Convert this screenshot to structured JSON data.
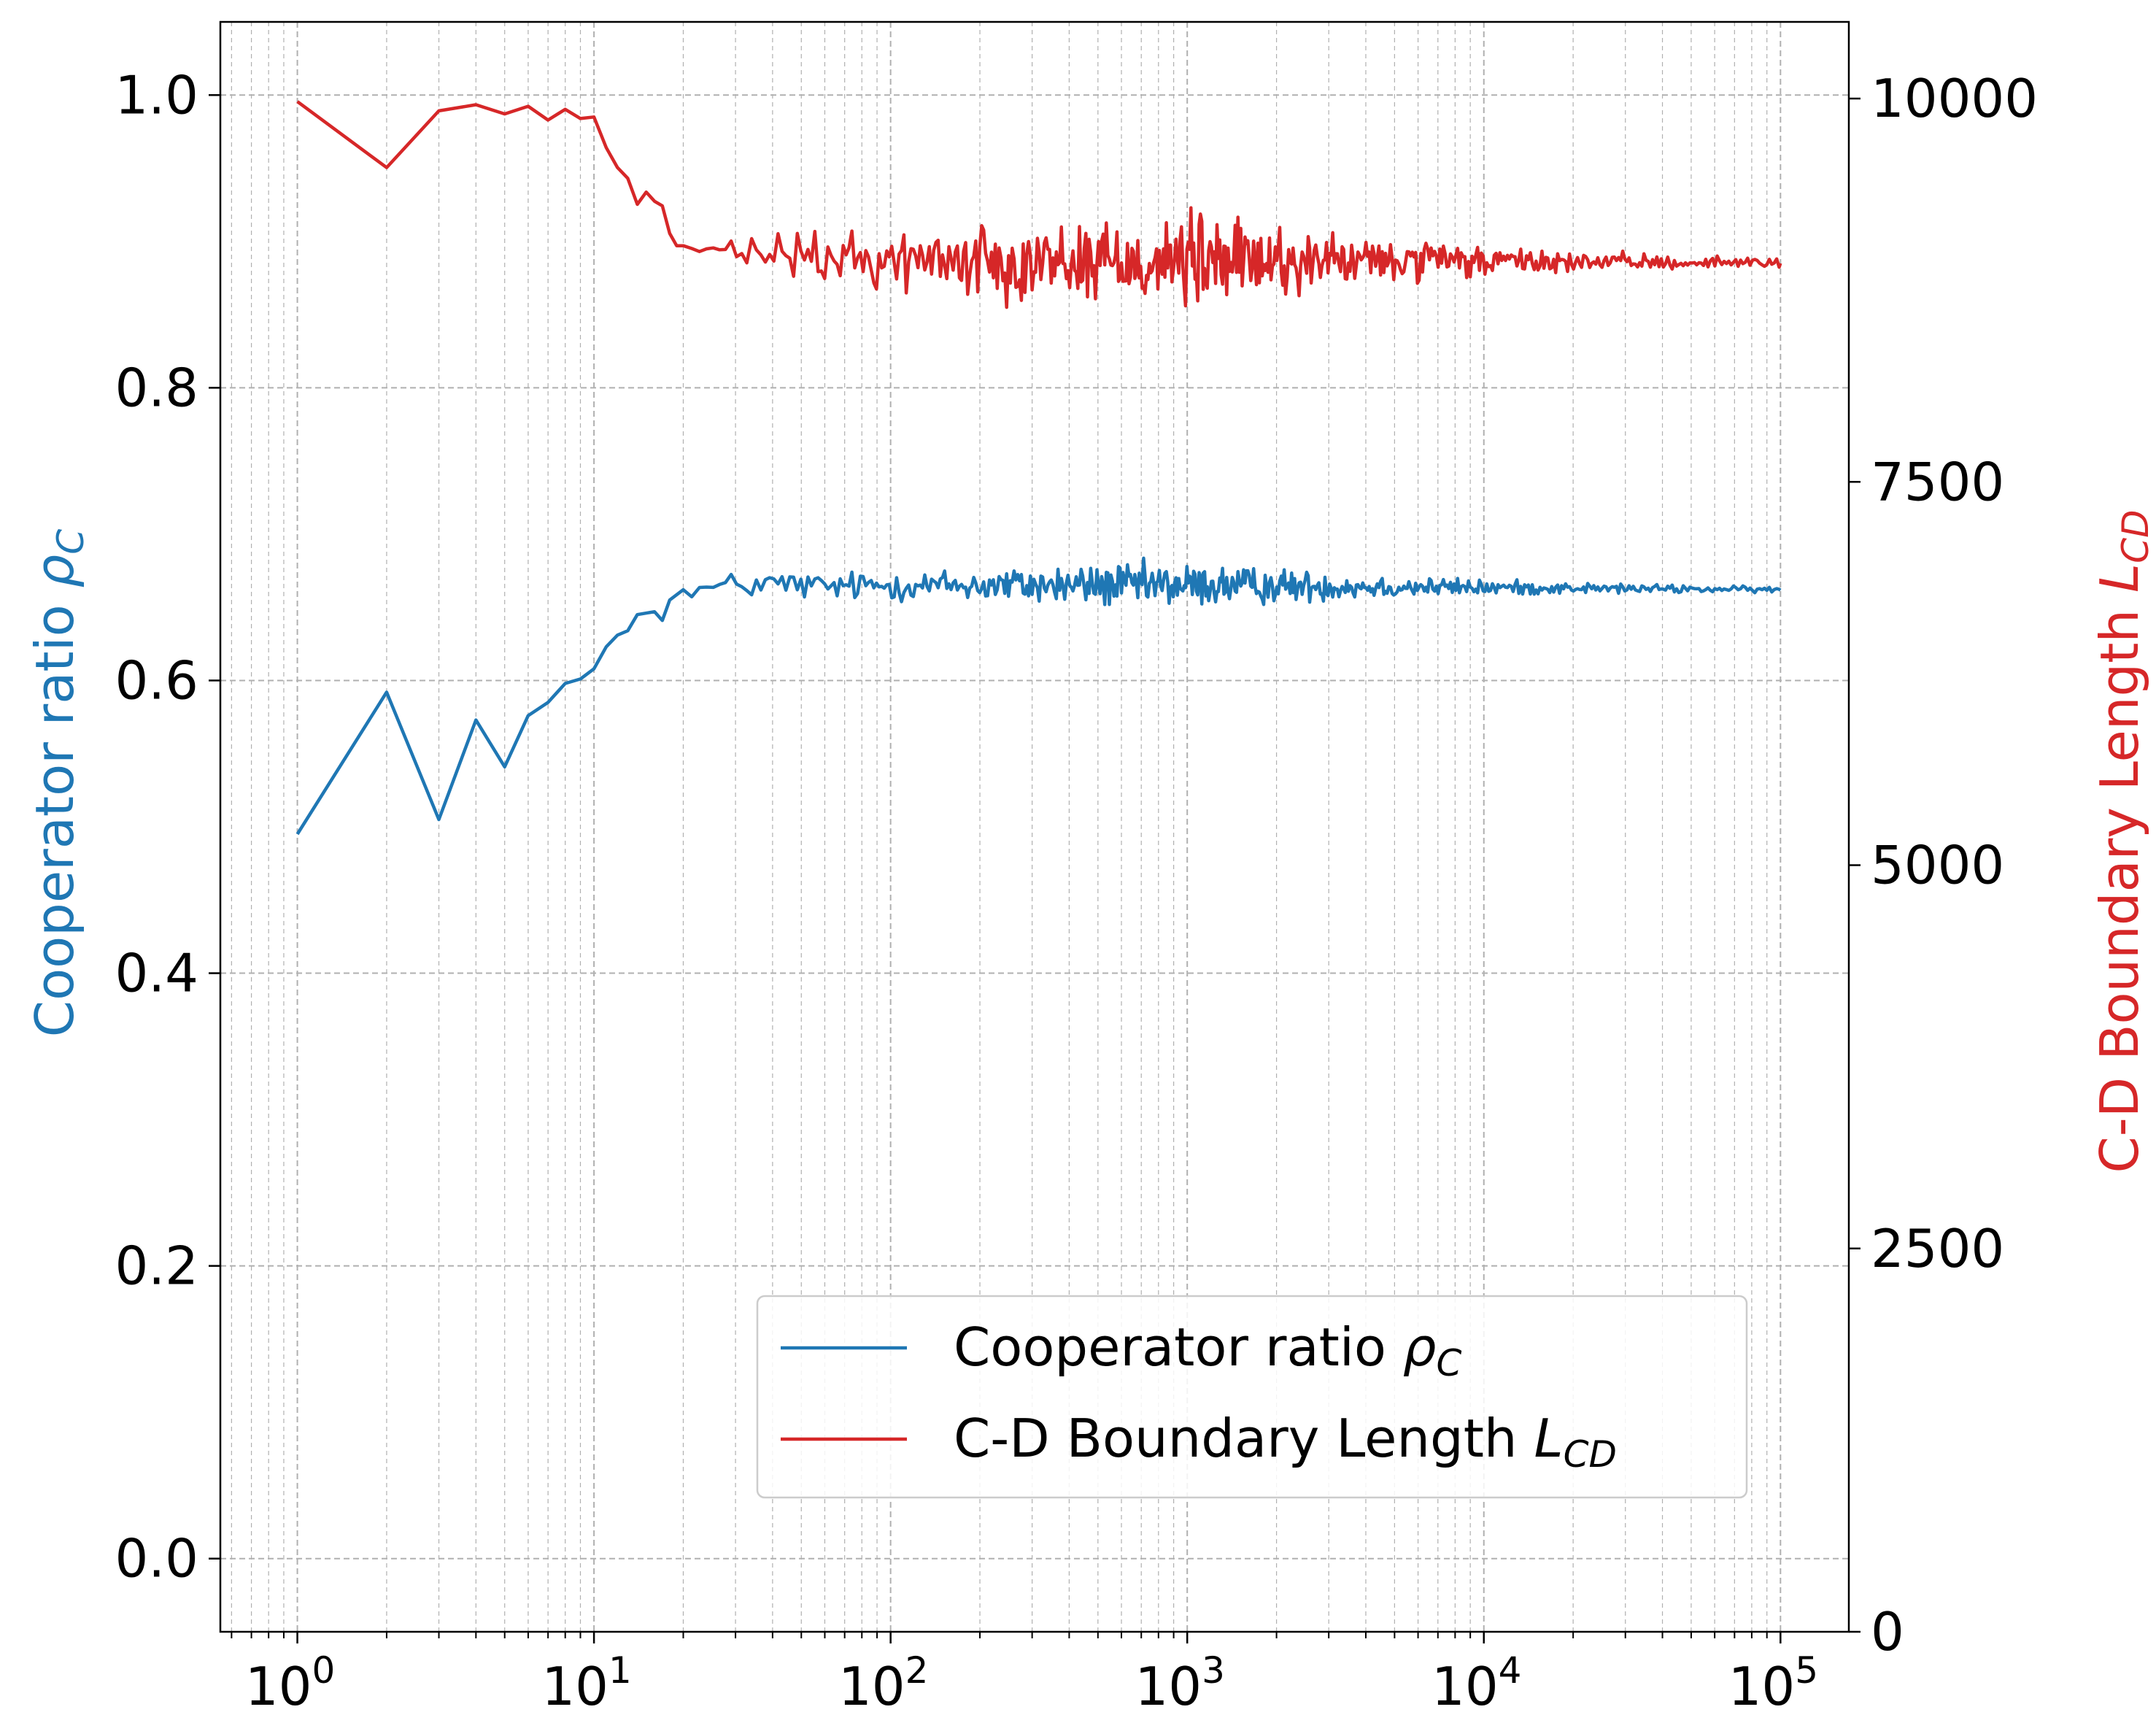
{
  "chart_data": {
    "type": "line",
    "title": "",
    "xlabel": "",
    "xscale": "log",
    "xlim": [
      0.55,
      170000
    ],
    "x_ticks": [
      {
        "value": 1,
        "base": "10",
        "exp": "0"
      },
      {
        "value": 10,
        "base": "10",
        "exp": "1"
      },
      {
        "value": 100,
        "base": "10",
        "exp": "2"
      },
      {
        "value": 1000,
        "base": "10",
        "exp": "3"
      },
      {
        "value": 10000,
        "base": "10",
        "exp": "4"
      },
      {
        "value": 100000,
        "base": "10",
        "exp": "5"
      }
    ],
    "grid": true,
    "left_axis": {
      "label_main": "Cooperator ratio ",
      "label_symbol": "ρ",
      "label_sub": "C",
      "color": "#1f77b4",
      "ylim": [
        -0.05,
        1.05
      ],
      "ticks": [
        "0.0",
        "0.2",
        "0.4",
        "0.6",
        "0.8",
        "1.0"
      ]
    },
    "right_axis": {
      "label_main": "C-D Boundary Length ",
      "label_symbol": "L",
      "label_sub": "CD",
      "color": "#d62728",
      "ylim": [
        0,
        10500
      ],
      "ticks": [
        "0",
        "2500",
        "5000",
        "7500",
        "10000"
      ]
    },
    "legend": {
      "position": "lower-right",
      "entries": [
        {
          "main": "Cooperator ratio ",
          "symbol": "ρ",
          "sub": "C",
          "color": "#1f77b4"
        },
        {
          "main": "C-D Boundary Length ",
          "symbol": "L",
          "sub": "CD",
          "color": "#d62728"
        }
      ]
    },
    "series": [
      {
        "axis": "left",
        "color": "#1f77b4",
        "anchors": [
          [
            1,
            0.495
          ],
          [
            2,
            0.592
          ],
          [
            3,
            0.505
          ],
          [
            4,
            0.573
          ],
          [
            5,
            0.541
          ],
          [
            6,
            0.576
          ],
          [
            7,
            0.585
          ],
          [
            8,
            0.598
          ],
          [
            9,
            0.601
          ],
          [
            10,
            0.608
          ],
          [
            11,
            0.623
          ],
          [
            12,
            0.631
          ],
          [
            13,
            0.634
          ],
          [
            14,
            0.645
          ],
          [
            16,
            0.647
          ],
          [
            17,
            0.641
          ],
          [
            18,
            0.655
          ],
          [
            20,
            0.662
          ],
          [
            25,
            0.663
          ],
          [
            30,
            0.665
          ],
          [
            40,
            0.666
          ],
          [
            60,
            0.664
          ],
          [
            100,
            0.665
          ],
          [
            1000,
            0.665
          ],
          [
            100000,
            0.662
          ]
        ],
        "noise": [
          [
            20,
            0.004
          ],
          [
            30,
            0.008
          ],
          [
            100,
            0.008
          ],
          [
            500,
            0.012
          ],
          [
            1000,
            0.012
          ],
          [
            5000,
            0.006
          ],
          [
            20000,
            0.003
          ],
          [
            100000,
            0.0015
          ]
        ],
        "samples_per_decade": [
          [
            20,
            35
          ],
          [
            100,
            120
          ],
          [
            1000,
            220
          ],
          [
            10000,
            160
          ],
          [
            100000,
            120
          ]
        ]
      },
      {
        "axis": "right",
        "color": "#d62728",
        "anchors": [
          [
            1,
            9980
          ],
          [
            2,
            9550
          ],
          [
            3,
            9920
          ],
          [
            4,
            9960
          ],
          [
            5,
            9900
          ],
          [
            6,
            9950
          ],
          [
            7,
            9860
          ],
          [
            8,
            9930
          ],
          [
            9,
            9870
          ],
          [
            10,
            9880
          ],
          [
            11,
            9680
          ],
          [
            12,
            9550
          ],
          [
            13,
            9480
          ],
          [
            14,
            9310
          ],
          [
            15,
            9390
          ],
          [
            16,
            9330
          ],
          [
            17,
            9300
          ],
          [
            18,
            9120
          ],
          [
            19,
            9040
          ],
          [
            20,
            9040
          ],
          [
            25,
            9000
          ],
          [
            30,
            8980
          ],
          [
            40,
            8990
          ],
          [
            60,
            8950
          ],
          [
            100,
            8950
          ],
          [
            1000,
            8940
          ],
          [
            100000,
            8930
          ]
        ],
        "noise": [
          [
            20,
            30
          ],
          [
            30,
            90
          ],
          [
            100,
            160
          ],
          [
            500,
            220
          ],
          [
            1000,
            250
          ],
          [
            5000,
            110
          ],
          [
            20000,
            50
          ],
          [
            100000,
            25
          ]
        ],
        "samples_per_decade": [
          [
            20,
            35
          ],
          [
            100,
            120
          ],
          [
            1000,
            220
          ],
          [
            10000,
            160
          ],
          [
            100000,
            120
          ]
        ]
      }
    ]
  }
}
